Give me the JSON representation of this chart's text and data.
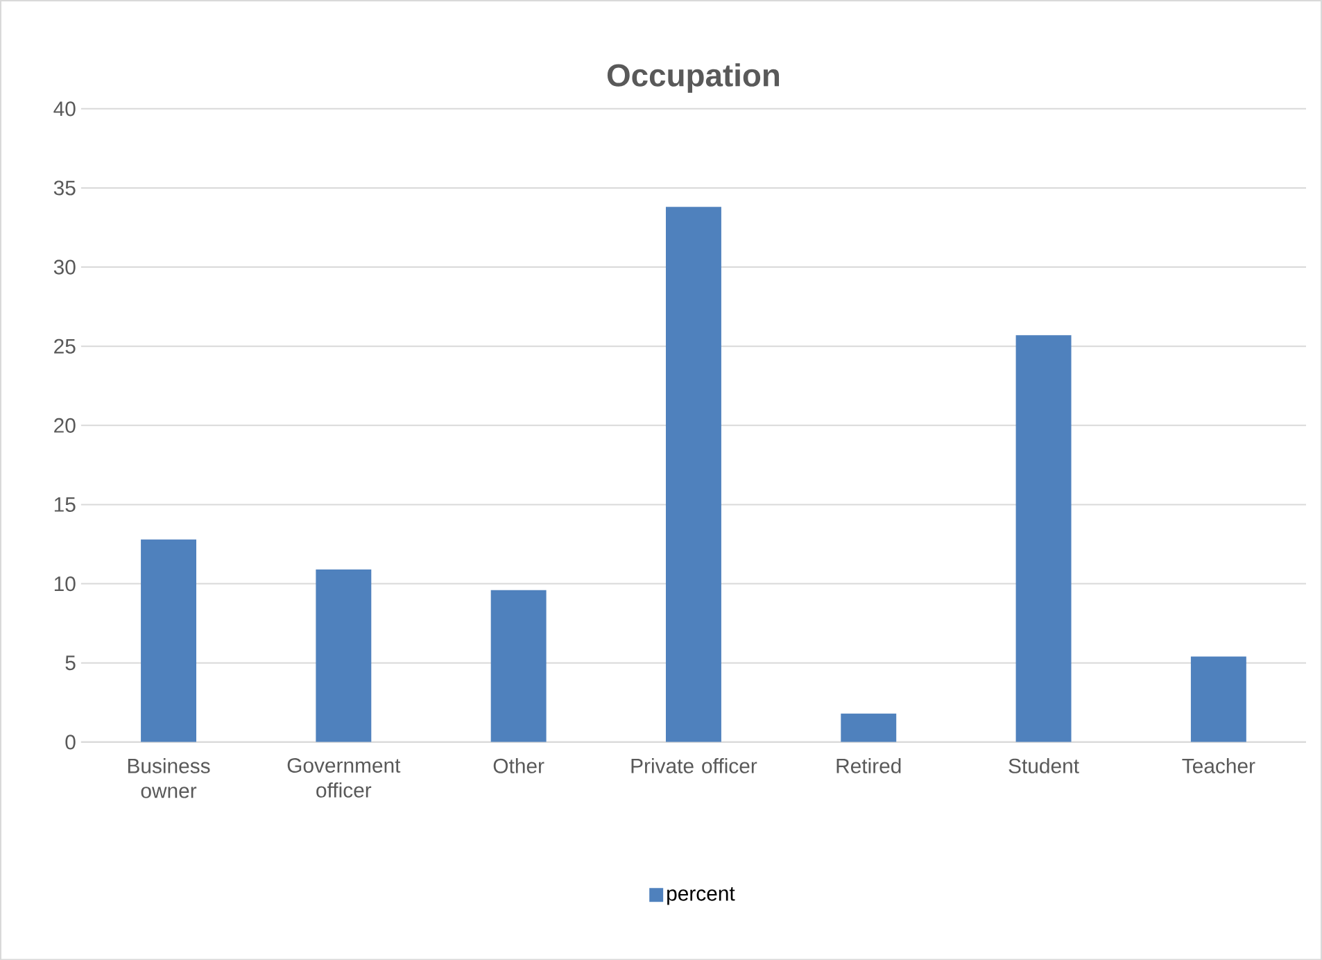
{
  "chart_data": {
    "type": "bar",
    "title": "Occupation",
    "categories": [
      "Business owner",
      "Government officer",
      "Other",
      "Private officer",
      "Retired",
      "Student",
      "Teacher"
    ],
    "series": [
      {
        "name": "percent",
        "color": "#4f81bd",
        "values": [
          12.8,
          10.9,
          9.6,
          33.8,
          1.8,
          25.7,
          5.4
        ]
      }
    ],
    "ylim": [
      0,
      40
    ],
    "yticks": [
      0,
      5,
      10,
      15,
      20,
      25,
      30,
      35,
      40
    ],
    "grid": "y",
    "legend": "bottom"
  }
}
